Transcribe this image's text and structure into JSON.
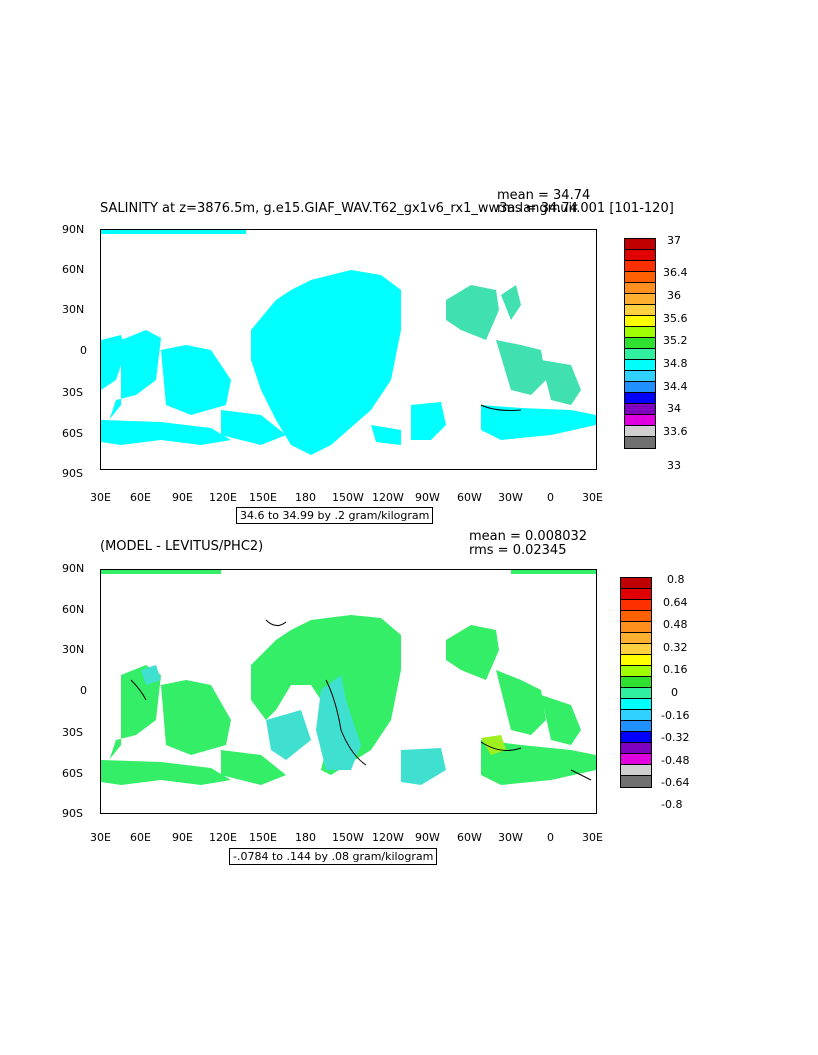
{
  "panel1": {
    "title": "SALINITY at z=3876.5m, g.e15.GIAF_WAV.T62_gx1v6_rx1_ww3a.langmuir.001  [101-120]",
    "stat1": "mean = 34.74",
    "stat2": "rms = 34.74",
    "contour_label": "34.6 to 34.99 by .2 gram/kilogram",
    "colorbar_labels": [
      "37",
      "36.4",
      "36",
      "35.6",
      "35.2",
      "34.8",
      "34.4",
      "34",
      "33.6",
      "33"
    ],
    "fill_color": "#00ffff",
    "atlantic_color": "#40e0b0"
  },
  "panel2": {
    "title": "(MODEL - LEVITUS/PHC2)",
    "stat1": "mean = 0.008032",
    "stat2": "rms = 0.02345",
    "contour_label": "-.0784 to .144 by .08 gram/kilogram",
    "colorbar_labels": [
      "0.8",
      "0.64",
      "0.48",
      "0.32",
      "0.16",
      "0",
      "-0.16",
      "-0.32",
      "-0.48",
      "-0.64",
      "-0.8"
    ],
    "fill_color": "#33ee66",
    "cyan_color": "#40e0d0"
  },
  "axes": {
    "lat_labels": [
      "90N",
      "60N",
      "30N",
      "0",
      "30S",
      "60S",
      "90S"
    ],
    "lon_labels": [
      "30E",
      "60E",
      "90E",
      "120E",
      "150E",
      "180",
      "150W",
      "120W",
      "90W",
      "60W",
      "30W",
      "0",
      "30E"
    ]
  },
  "colorbar_colors": [
    "#c00000",
    "#e00000",
    "#ff3000",
    "#ff6000",
    "#ff9020",
    "#ffb030",
    "#ffd040",
    "#ffff00",
    "#a0ff00",
    "#30e030",
    "#30f0a0",
    "#00ffff",
    "#30d0ff",
    "#2090ff",
    "#0000ff",
    "#8000c0",
    "#e000e0",
    "#d0d0d0",
    "#707070"
  ]
}
